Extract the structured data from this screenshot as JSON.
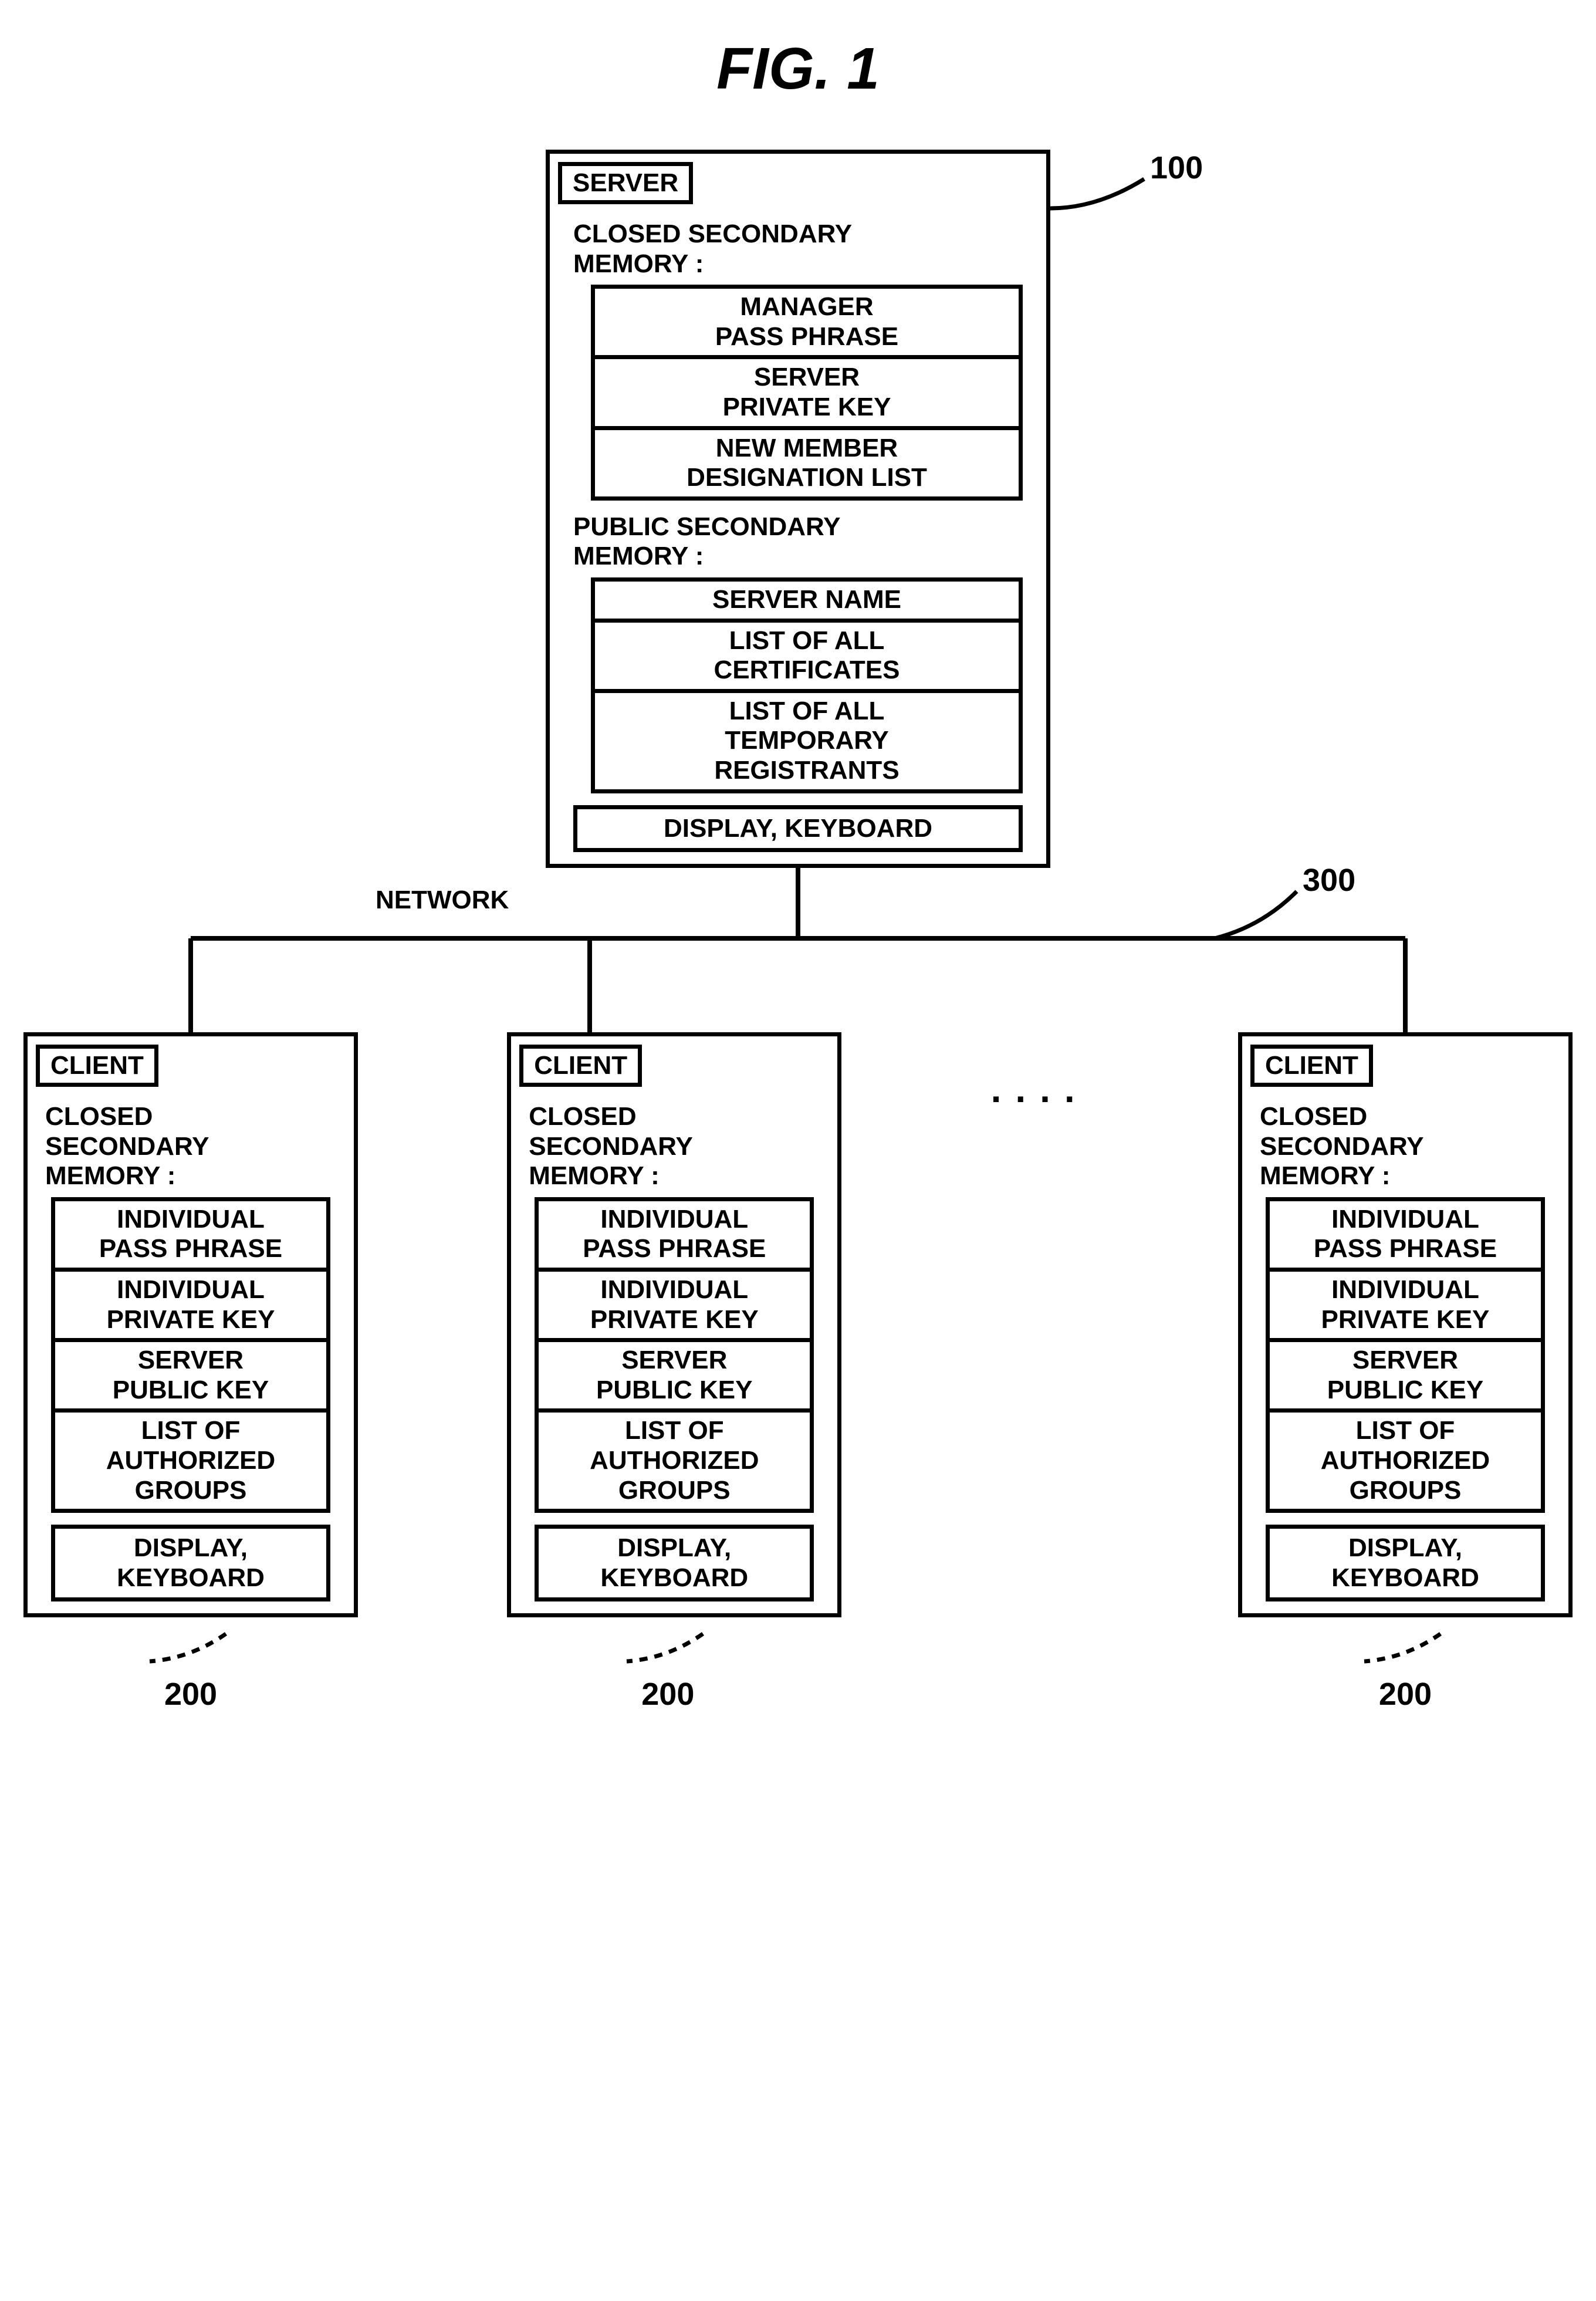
{
  "figure": {
    "title": "FIG.  1",
    "title_fontsize": 100,
    "body_fontsize": 44,
    "border_width": 7,
    "callouts": {
      "server": "100",
      "network": "300",
      "client": "200"
    },
    "network_label": "NETWORK",
    "dots": "....",
    "server": {
      "label": "SERVER",
      "sections": [
        {
          "heading": "CLOSED SECONDARY\nMEMORY :",
          "items": [
            "MANAGER\nPASS PHRASE",
            "SERVER\nPRIVATE KEY",
            "NEW MEMBER\nDESIGNATION LIST"
          ]
        },
        {
          "heading": "PUBLIC SECONDARY\nMEMORY :",
          "items": [
            "SERVER NAME",
            "LIST OF ALL\nCERTIFICATES",
            "LIST OF ALL\nTEMPORARY\nREGISTRANTS"
          ]
        }
      ],
      "bottom": "DISPLAY, KEYBOARD"
    },
    "client": {
      "label": "CLIENT",
      "sections": [
        {
          "heading": "CLOSED\nSECONDARY\nMEMORY :",
          "items": [
            "INDIVIDUAL\nPASS PHRASE",
            "INDIVIDUAL\nPRIVATE KEY",
            "SERVER\nPUBLIC KEY",
            "LIST OF\nAUTHORIZED\nGROUPS"
          ]
        }
      ],
      "bottom": "DISPLAY,\nKEYBOARD"
    },
    "colors": {
      "stroke": "#000000",
      "background": "#ffffff"
    }
  }
}
